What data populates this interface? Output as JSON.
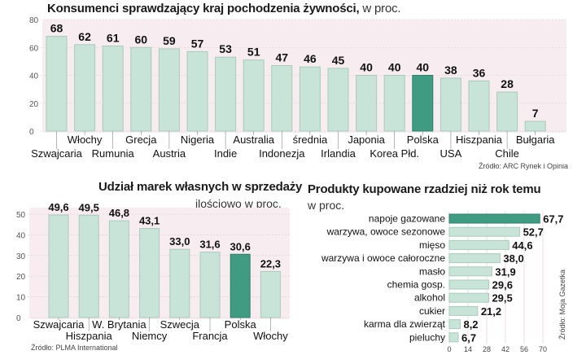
{
  "colors": {
    "bar": "#c8e3d8",
    "bar_stroke": "#a9cbbd",
    "highlight": "#3f9c82",
    "highlight_stroke": "#2f7f69",
    "plot_bg": "#f7ecef",
    "grid": "#dcc8cf"
  },
  "chart1": {
    "title": "Konsumenci sprawdzający kraj pochodzenia żywności,",
    "unit": " w proc.",
    "source": "Źródło: ARC Rynek i Opinia"
  },
  "chart2": {
    "title": "Udział marek własnych w sprzedaży",
    "subtitle": "ilościowo w proc.",
    "source": "Źródło: PLMA International"
  },
  "chart3": {
    "title": "Produkty kupowane rzadziej niż rok temu",
    "subtitle": "w proc.",
    "source": "Źródło: Moja Gazetka"
  },
  "chart_data": [
    {
      "type": "bar",
      "title": "Konsumenci sprawdzający kraj pochodzenia żywności, w proc.",
      "categories": [
        "Szwajcaria",
        "Włochy",
        "Rumunia",
        "Grecja",
        "Austria",
        "Nigeria",
        "Indie",
        "Australia",
        "Indonezja",
        "średnia",
        "Irlandia",
        "Japonia",
        "Korea Płd.",
        "Polska",
        "USA",
        "Hiszpania",
        "Chile",
        "Bułgaria"
      ],
      "values": [
        68,
        62,
        61,
        60,
        59,
        57,
        53,
        51,
        47,
        46,
        45,
        40,
        40,
        40,
        38,
        36,
        28,
        7
      ],
      "value_labels": [
        "68",
        "62",
        "61",
        "60",
        "59",
        "57",
        "53",
        "51",
        "47",
        "46",
        "45",
        "40",
        "40",
        "40",
        "38",
        "36",
        "28",
        "7"
      ],
      "highlight": "Polska",
      "ylim": [
        0,
        80
      ],
      "yticks": [
        0,
        20,
        40,
        60,
        80
      ],
      "label_rows": [
        1,
        0,
        1,
        0,
        1,
        0,
        1,
        0,
        1,
        0,
        1,
        0,
        1,
        0,
        1,
        0,
        1,
        0
      ]
    },
    {
      "type": "bar",
      "title": "Udział marek własnych w sprzedaży ilościowo w proc.",
      "categories": [
        "Szwajcaria",
        "Hiszpania",
        "W. Brytania",
        "Niemcy",
        "Szwecja",
        "Francja",
        "Polska",
        "Włochy"
      ],
      "values": [
        49.6,
        49.5,
        46.8,
        43.1,
        33.0,
        31.6,
        30.6,
        22.3
      ],
      "value_labels": [
        "49,6",
        "49,5",
        "46,8",
        "43,1",
        "33,0",
        "31,6",
        "30,6",
        "22,3"
      ],
      "highlight": "Polska",
      "ylim": [
        0,
        50
      ],
      "yticks": [
        0,
        10,
        20,
        30,
        40,
        50
      ],
      "label_rows": [
        0,
        1,
        0,
        1,
        0,
        1,
        0,
        1
      ]
    },
    {
      "type": "bar",
      "orientation": "horizontal",
      "title": "Produkty kupowane rzadziej niż rok temu w proc.",
      "categories": [
        "napoje gazowane",
        "warzywa, owoce sezonowe",
        "mięso",
        "warzywa i owoce całoroczne",
        "masło",
        "chemia gosp.",
        "alkohol",
        "cukier",
        "karma dla zwierząt",
        "pieluchy"
      ],
      "values": [
        67.7,
        52.7,
        44.6,
        38.0,
        31.9,
        29.6,
        29.5,
        21.2,
        8.2,
        6.7
      ],
      "value_labels": [
        "67,7",
        "52,7",
        "44,6",
        "38,0",
        "31,9",
        "29,6",
        "29,5",
        "21,2",
        "8,2",
        "6,7"
      ],
      "highlight": "napoje gazowane",
      "xlim": [
        0,
        70
      ],
      "xticks": [
        0,
        14,
        28,
        42,
        56,
        70
      ]
    }
  ]
}
